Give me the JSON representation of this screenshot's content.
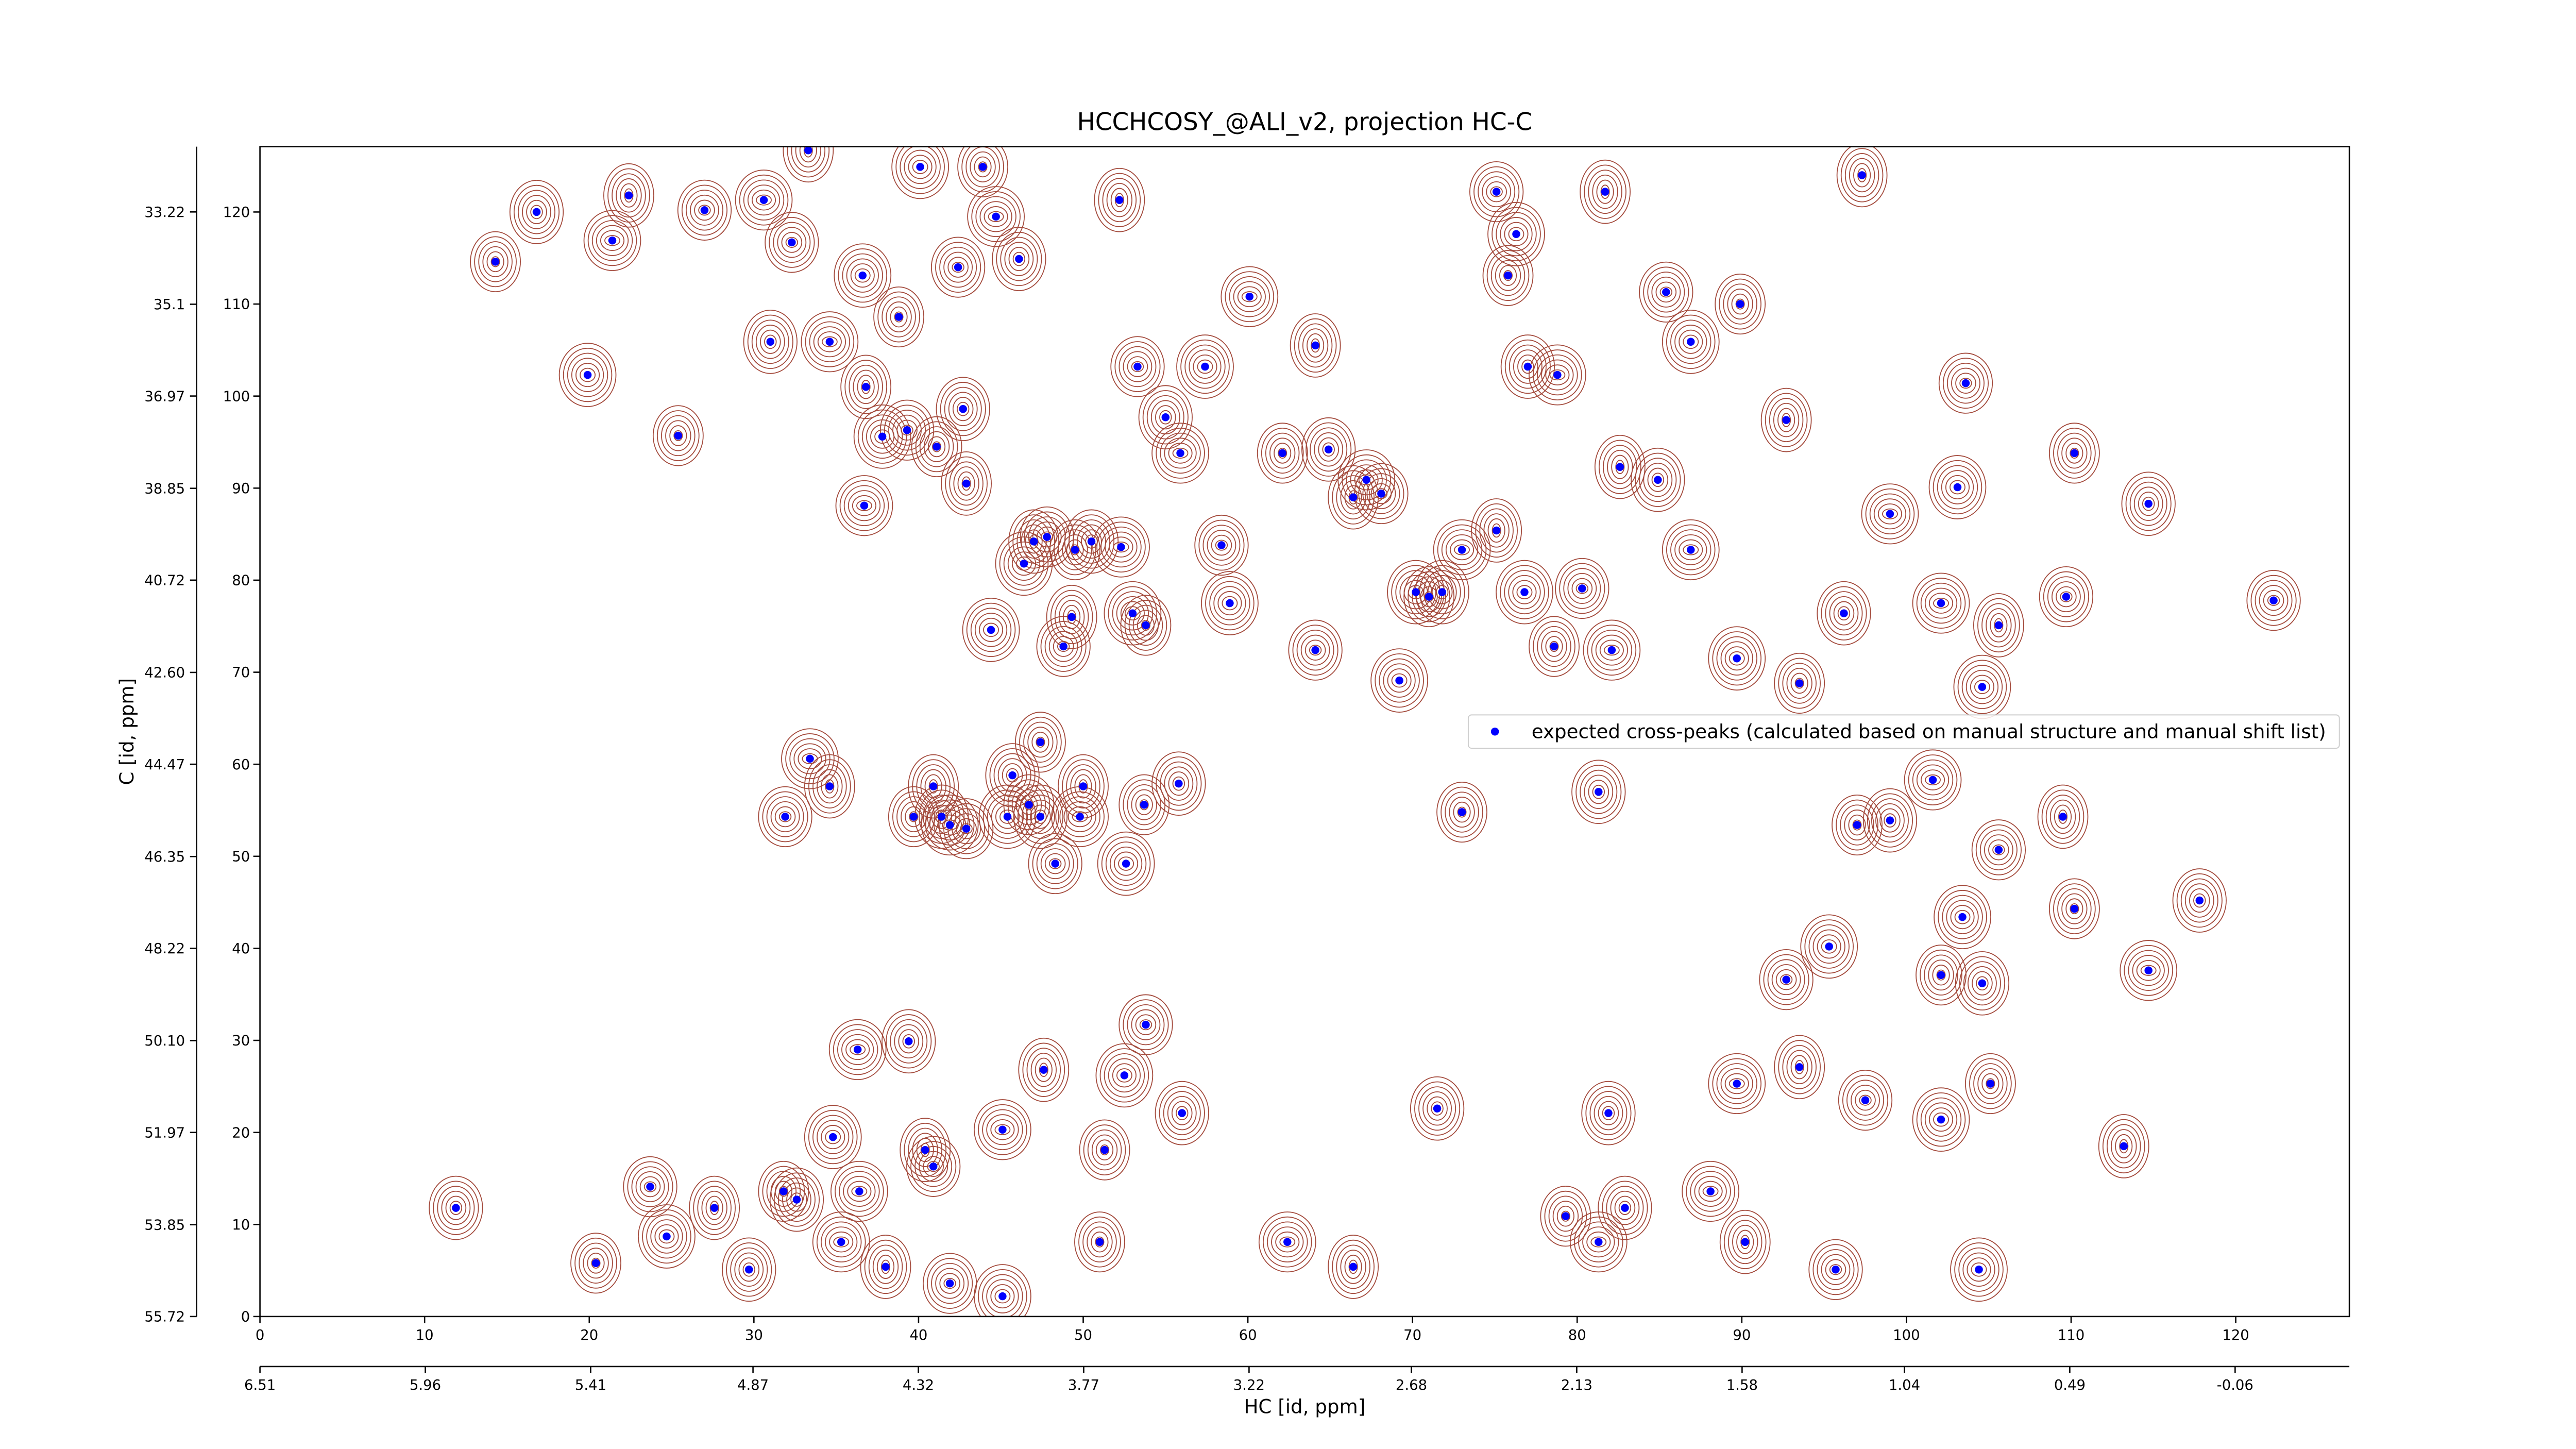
{
  "chart_data": {
    "type": "scatter",
    "title": "HCCHCOSY_@ALI_v2, projection HC-C",
    "xlabel": "HC [id, ppm]",
    "ylabel": "C [id, ppm]",
    "xlim": [
      0,
      126.9
    ],
    "ylim": [
      0,
      127.1
    ],
    "xticks": [
      0,
      10,
      20,
      30,
      40,
      50,
      60,
      70,
      80,
      90,
      100,
      110,
      120
    ],
    "yticks": [
      0,
      10,
      20,
      30,
      40,
      50,
      60,
      70,
      80,
      90,
      100,
      110,
      120
    ],
    "x2lim": [
      6.51,
      -0.44
    ],
    "x2ticks": [
      6.51,
      5.96,
      5.41,
      4.87,
      4.32,
      3.77,
      3.22,
      2.68,
      2.13,
      1.58,
      1.04,
      0.49,
      -0.06
    ],
    "y2lim": [
      55.72,
      31.89
    ],
    "y2ticks": [
      55.72,
      53.85,
      51.97,
      {
        "value": 50.1,
        "label": "50.10"
      },
      48.22,
      46.35,
      44.47,
      {
        "value": 42.6,
        "label": "42.60"
      },
      40.72,
      38.85,
      36.97,
      35.1,
      33.22
    ],
    "contour_color": "#a3493b",
    "legend_loc": "center right",
    "series": [
      {
        "name": "expected cross-peaks (calculated based on manual structure and manual shift list)",
        "color": "#0000ff",
        "x": [
          14.3,
          16.8,
          21.4,
          22.4,
          27,
          19.9,
          25.4,
          11.9,
          30.6,
          33.3,
          32.3,
          36.6,
          38.8,
          31,
          34.6,
          36.8,
          39.3,
          37.8,
          41.1,
          42.7,
          36.7,
          42.9,
          42.4,
          40.1,
          43.9,
          46.1,
          44.7,
          47,
          47.8,
          46.4,
          49.5,
          50.5,
          52.3,
          49.3,
          48.8,
          53,
          53.8,
          55,
          55.9,
          52.2,
          53.3,
          57.4,
          39.7,
          41.4,
          41.9,
          40.9,
          42.9,
          45.4,
          46.7,
          47.4,
          49.8,
          50,
          48.3,
          52.6,
          53.7,
          55.8,
          33.4,
          34.6,
          31.9,
          44.4,
          47.4,
          45.7,
          36.3,
          47.6,
          53.8,
          52.5,
          51.3,
          56,
          45.1,
          40.4,
          40.9,
          34.8,
          31.8,
          32.6,
          36.4,
          27.6,
          23.7,
          24.7,
          20.4,
          29.7,
          35.3,
          38,
          41.9,
          45.1,
          51,
          39.4,
          60.1,
          64.1,
          58.4,
          58.9,
          62.1,
          64.9,
          67.2,
          66.4,
          68.1,
          70.2,
          71,
          71.8,
          73,
          75.1,
          64.1,
          69.2,
          73,
          71.5,
          62.4,
          66.4,
          75.1,
          76.3,
          75.8,
          77,
          78.8,
          81.7,
          85.4,
          86.9,
          89.9,
          84.9,
          86.9,
          82.6,
          80.3,
          76.8,
          78.6,
          81.3,
          82.1,
          97.3,
          103.6,
          103.1,
          110.2,
          114.7,
          99,
          92.7,
          122.3,
          89.7,
          93.5,
          96.2,
          102.1,
          105.6,
          109.7,
          104.6,
          97,
          99,
          101.6,
          109.5,
          105.6,
          103.4,
          110.2,
          117.8,
          114.7,
          113.2,
          92.7,
          95.3,
          102.1,
          104.6,
          89.7,
          93.5,
          97.5,
          102.1,
          105.1,
          81.9,
          88.1,
          90.2,
          95.7,
          104.4,
          79.3,
          82.9,
          81.3
        ],
        "values": [
          114.6,
          120,
          116.9,
          121.8,
          120.2,
          102.3,
          95.7,
          11.8,
          121.3,
          126.7,
          116.7,
          113.1,
          108.6,
          105.9,
          105.9,
          101,
          96.3,
          95.6,
          94.5,
          98.6,
          88.1,
          90.5,
          114,
          124.9,
          124.9,
          114.9,
          119.5,
          84.2,
          84.7,
          81.8,
          83.3,
          84.2,
          83.6,
          76,
          72.8,
          76.4,
          75.1,
          97.7,
          93.8,
          121.3,
          103.2,
          103.2,
          54.3,
          54.3,
          53.4,
          57.6,
          53,
          54.3,
          55.6,
          54.3,
          54.3,
          57.6,
          49.2,
          49.2,
          55.6,
          57.9,
          60.6,
          57.6,
          54.3,
          74.6,
          62.4,
          58.8,
          29,
          26.8,
          31.7,
          26.2,
          18.1,
          22.1,
          20.3,
          18.1,
          16.3,
          19.5,
          13.6,
          12.7,
          13.6,
          11.8,
          14.1,
          8.7,
          5.8,
          5.1,
          8.1,
          5.4,
          3.6,
          2.2,
          8.1,
          29.9,
          110.8,
          105.5,
          83.8,
          77.5,
          93.8,
          94.2,
          90.9,
          89,
          89.4,
          78.7,
          78.2,
          78.7,
          83.3,
          85.4,
          72.4,
          69.1,
          54.8,
          22.6,
          8.1,
          5.4,
          122.2,
          117.6,
          113.1,
          103.2,
          102.3,
          122.2,
          111.3,
          105.9,
          110,
          90.9,
          83.3,
          92.3,
          79.1,
          78.7,
          72.8,
          57,
          72.4,
          124,
          101.4,
          90.1,
          93.8,
          88.3,
          87.2,
          97.4,
          77.8,
          71.5,
          68.8,
          76.4,
          77.5,
          75.1,
          78.2,
          68.4,
          53.4,
          53.9,
          58.3,
          54.3,
          50.7,
          43.4,
          44.3,
          45.2,
          37.6,
          18.5,
          36.6,
          40.2,
          37.1,
          36.2,
          25.3,
          27.1,
          23.5,
          21.4,
          25.3,
          22.1,
          13.6,
          8.1,
          5.1,
          5.1,
          10.9,
          11.8,
          8.1
        ]
      }
    ]
  }
}
